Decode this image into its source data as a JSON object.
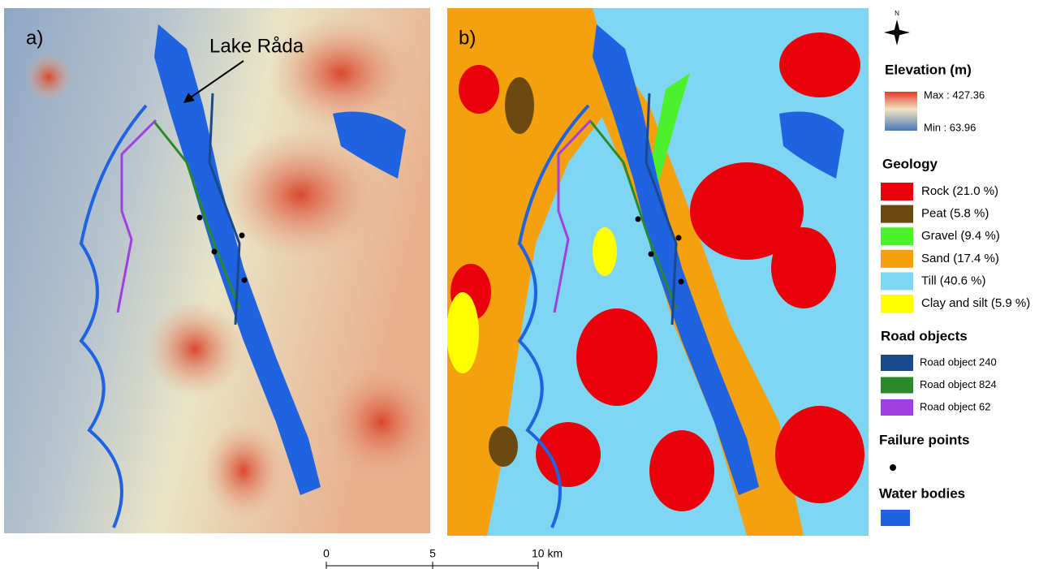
{
  "panels": [
    {
      "label": "a)",
      "annotation": "Lake Råda"
    },
    {
      "label": "b)"
    }
  ],
  "scale_bar": {
    "ticks": [
      "0",
      "5",
      "10 km"
    ]
  },
  "legend": {
    "north": "N",
    "elevation": {
      "title": "Elevation (m)",
      "max": "Max : 427.36",
      "min": "Min : 63.96"
    },
    "geology": {
      "title": "Geology",
      "items": [
        {
          "label": "Rock (21.0 %)",
          "color": "#e8000b"
        },
        {
          "label": "Peat (5.8 %)",
          "color": "#6b4a12"
        },
        {
          "label": "Gravel (9.4 %)",
          "color": "#4cf02c"
        },
        {
          "label": "Sand (17.4 %)",
          "color": "#f5a00f"
        },
        {
          "label": "Till (40.6 %)",
          "color": "#7fd6f2"
        },
        {
          "label": "Clay and silt (5.9 %)",
          "color": "#ffff00"
        }
      ]
    },
    "roads": {
      "title": "Road objects",
      "items": [
        {
          "label": "Road object 240",
          "color": "#1a4a8c"
        },
        {
          "label": "Road object 824",
          "color": "#2a8a2a"
        },
        {
          "label": "Road object 62",
          "color": "#a040e0"
        }
      ]
    },
    "failure": {
      "title": "Failure points"
    },
    "water": {
      "title": "Water bodies",
      "color": "#1f63e0"
    }
  }
}
